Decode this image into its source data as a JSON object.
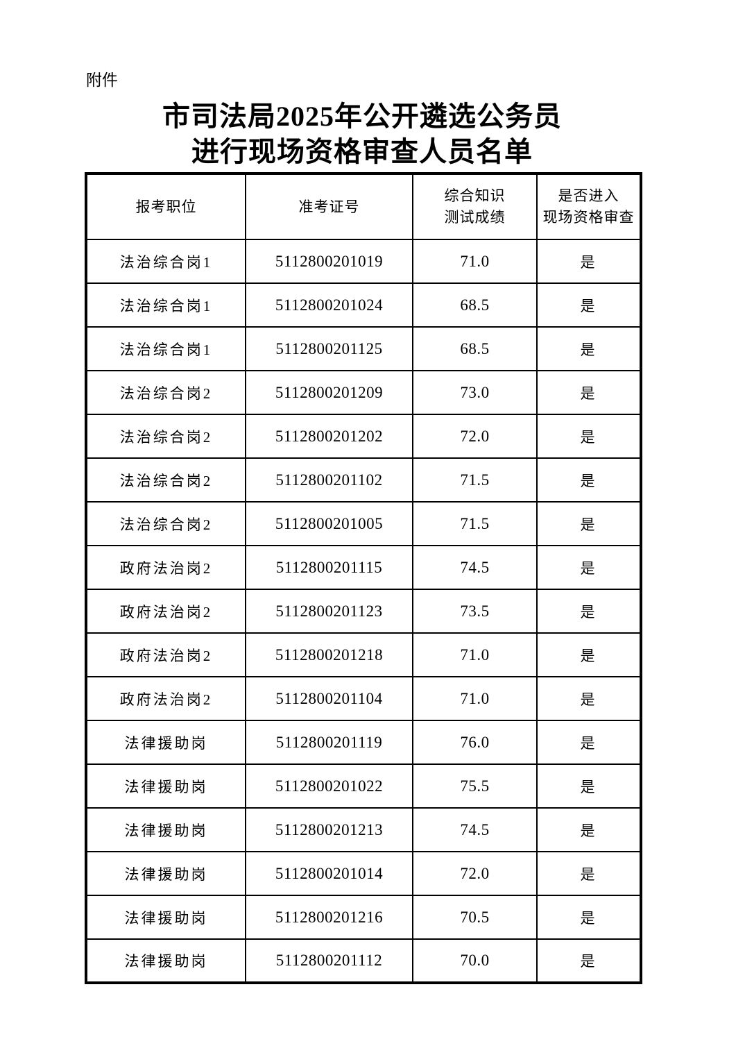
{
  "page": {
    "attachment_label": "附件",
    "title_line1": "市司法局2025年公开遴选公务员",
    "title_line2": "进行现场资格审查人员名单"
  },
  "colors": {
    "text": "#000000",
    "background": "#ffffff",
    "table_border": "#000000"
  },
  "table": {
    "headers": [
      "报考职位",
      "准考证号",
      "综合知识\n测试成绩",
      "是否进入\n现场资格审查"
    ],
    "rows": [
      [
        "法治综合岗1",
        "5112800201019",
        "71.0",
        "是"
      ],
      [
        "法治综合岗1",
        "5112800201024",
        "68.5",
        "是"
      ],
      [
        "法治综合岗1",
        "5112800201125",
        "68.5",
        "是"
      ],
      [
        "法治综合岗2",
        "5112800201209",
        "73.0",
        "是"
      ],
      [
        "法治综合岗2",
        "5112800201202",
        "72.0",
        "是"
      ],
      [
        "法治综合岗2",
        "5112800201102",
        "71.5",
        "是"
      ],
      [
        "法治综合岗2",
        "5112800201005",
        "71.5",
        "是"
      ],
      [
        "政府法治岗2",
        "5112800201115",
        "74.5",
        "是"
      ],
      [
        "政府法治岗2",
        "5112800201123",
        "73.5",
        "是"
      ],
      [
        "政府法治岗2",
        "5112800201218",
        "71.0",
        "是"
      ],
      [
        "政府法治岗2",
        "5112800201104",
        "71.0",
        "是"
      ],
      [
        "法律援助岗",
        "5112800201119",
        "76.0",
        "是"
      ],
      [
        "法律援助岗",
        "5112800201022",
        "75.5",
        "是"
      ],
      [
        "法律援助岗",
        "5112800201213",
        "74.5",
        "是"
      ],
      [
        "法律援助岗",
        "5112800201014",
        "72.0",
        "是"
      ],
      [
        "法律援助岗",
        "5112800201216",
        "70.5",
        "是"
      ],
      [
        "法律援助岗",
        "5112800201112",
        "70.0",
        "是"
      ]
    ]
  }
}
